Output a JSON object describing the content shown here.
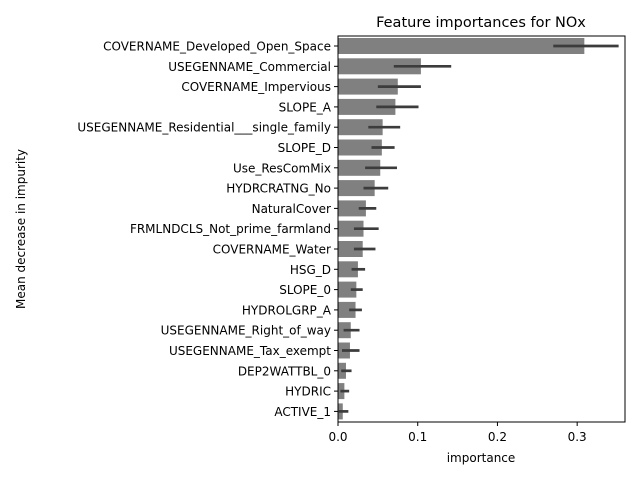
{
  "chart_data": {
    "type": "bar",
    "orientation": "horizontal",
    "title": "Feature importances for NOx",
    "xlabel": "importance",
    "ylabel": "Mean decrease in impurity",
    "xlim": [
      0,
      0.36
    ],
    "xticks": [
      0,
      0.1,
      0.2,
      0.3
    ],
    "xtick_labels": [
      "0.0",
      "0.1",
      "0.2",
      "0.3"
    ],
    "bar_color": "#808080",
    "errorbar_color": "#3c3c3c",
    "grid": false,
    "categories": [
      "COVERNAME_Developed_Open_Space",
      "USEGENNAME_Commercial",
      "COVERNAME_Impervious",
      "SLOPE_A",
      "USEGENNAME_Residential___single_family",
      "SLOPE_D",
      "Use_ResComMix",
      "HYDRCRATNG_No",
      "NaturalCover",
      "FRMLNDCLS_Not_prime_farmland",
      "COVERNAME_Water",
      "HSG_D",
      "SLOPE_0",
      "HYDROLGRP_A",
      "USEGENNAME_Right_of_way",
      "USEGENNAME_Tax_exempt",
      "DEP2WATTBL_0",
      "HYDRIC",
      "ACTIVE_1"
    ],
    "values": [
      0.309,
      0.104,
      0.075,
      0.072,
      0.056,
      0.055,
      0.053,
      0.046,
      0.035,
      0.032,
      0.031,
      0.025,
      0.023,
      0.022,
      0.016,
      0.015,
      0.01,
      0.008,
      0.006
    ],
    "err_low": [
      0.27,
      0.07,
      0.05,
      0.048,
      0.038,
      0.042,
      0.034,
      0.032,
      0.026,
      0.02,
      0.02,
      0.017,
      0.016,
      0.014,
      0.007,
      0.005,
      0.004,
      0.003,
      0.001
    ],
    "err_high": [
      0.352,
      0.142,
      0.104,
      0.101,
      0.078,
      0.071,
      0.074,
      0.063,
      0.048,
      0.051,
      0.047,
      0.034,
      0.031,
      0.03,
      0.027,
      0.027,
      0.017,
      0.014,
      0.013
    ]
  }
}
